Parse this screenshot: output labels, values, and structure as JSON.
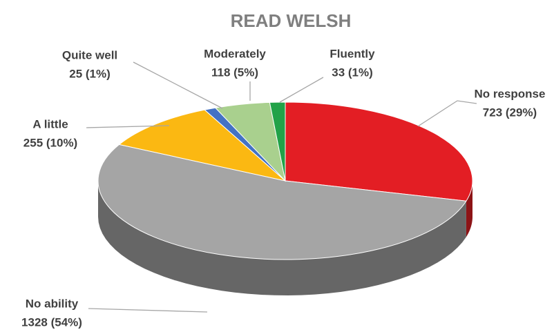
{
  "chart_data": {
    "type": "pie",
    "title": "READ WELSH",
    "categories": [
      "No response",
      "No ability",
      "A little",
      "Quite well",
      "Moderately",
      "Fluently"
    ],
    "values": [
      723,
      1328,
      255,
      25,
      118,
      33
    ],
    "value_labels": [
      "723 (29%)",
      "1328 (54%)",
      "255 (10%)",
      "25 (1%)",
      "118 (5%)",
      "33 (1%)"
    ],
    "colors": [
      "#e31e24",
      "#a5a5a5",
      "#fbb812",
      "#4472c4",
      "#a9d08e",
      "#21a248"
    ]
  }
}
